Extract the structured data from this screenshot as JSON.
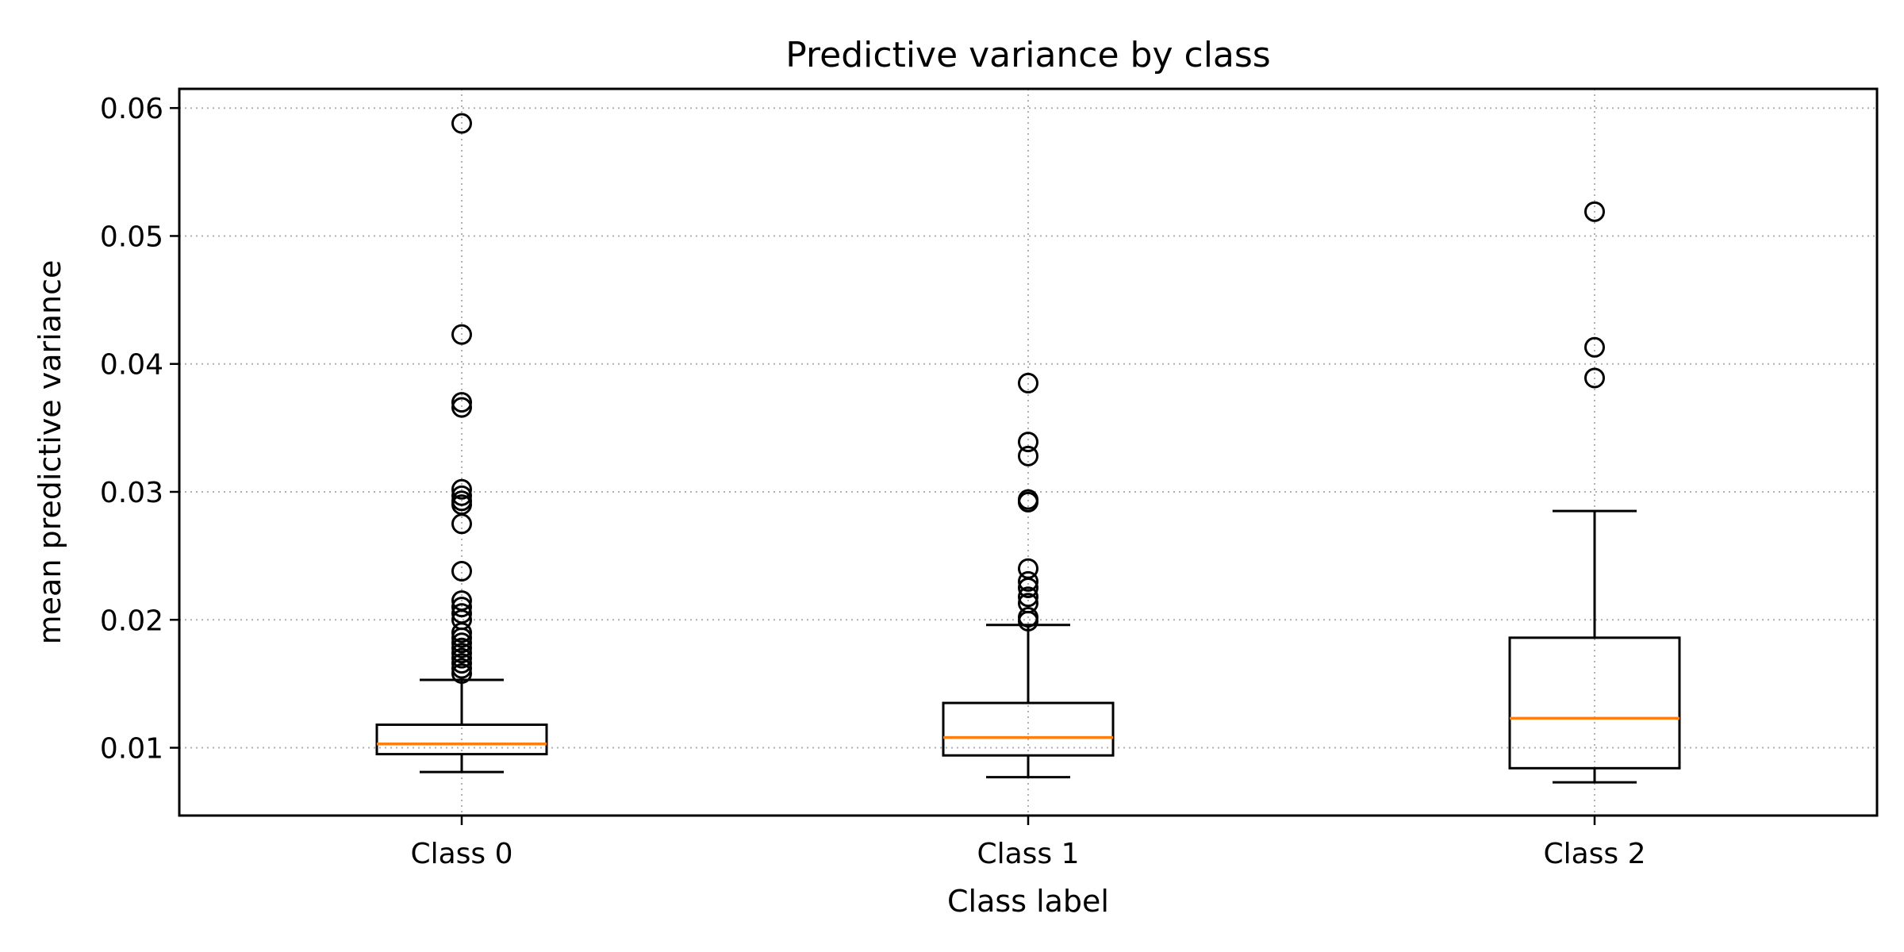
{
  "chart_data": {
    "type": "box",
    "title": "Predictive variance by class",
    "xlabel": "Class label",
    "ylabel": "mean predictive variance",
    "categories": [
      "Class 0",
      "Class 1",
      "Class 2"
    ],
    "ylim": [
      0.0047,
      0.0615
    ],
    "yticks": [
      0.01,
      0.02,
      0.03,
      0.04,
      0.05,
      0.06
    ],
    "ytick_labels": [
      "0.01",
      "0.02",
      "0.03",
      "0.04",
      "0.05",
      "0.06"
    ],
    "grid": true,
    "colors": {
      "box": "#000000",
      "median": "#ff7f0e",
      "grid": "#b0b0b0"
    },
    "boxes": [
      {
        "whisker_low": 0.0081,
        "q1": 0.0095,
        "median": 0.0103,
        "q3": 0.0118,
        "whisker_high": 0.0153,
        "fliers": [
          0.0158,
          0.0162,
          0.0166,
          0.017,
          0.0174,
          0.0178,
          0.0182,
          0.0186,
          0.019,
          0.02,
          0.0205,
          0.021,
          0.0215,
          0.0238,
          0.0275,
          0.029,
          0.0293,
          0.0297,
          0.0302,
          0.0366,
          0.037,
          0.0423,
          0.0588
        ]
      },
      {
        "whisker_low": 0.0077,
        "q1": 0.0094,
        "median": 0.0108,
        "q3": 0.0135,
        "whisker_high": 0.0196,
        "fliers": [
          0.0199,
          0.0202,
          0.0213,
          0.0218,
          0.0225,
          0.023,
          0.024,
          0.0292,
          0.0294,
          0.0328,
          0.0339,
          0.0385
        ]
      },
      {
        "whisker_low": 0.0073,
        "q1": 0.0084,
        "median": 0.0123,
        "q3": 0.0186,
        "whisker_high": 0.0285,
        "fliers": [
          0.0389,
          0.0413,
          0.0519
        ]
      }
    ]
  }
}
